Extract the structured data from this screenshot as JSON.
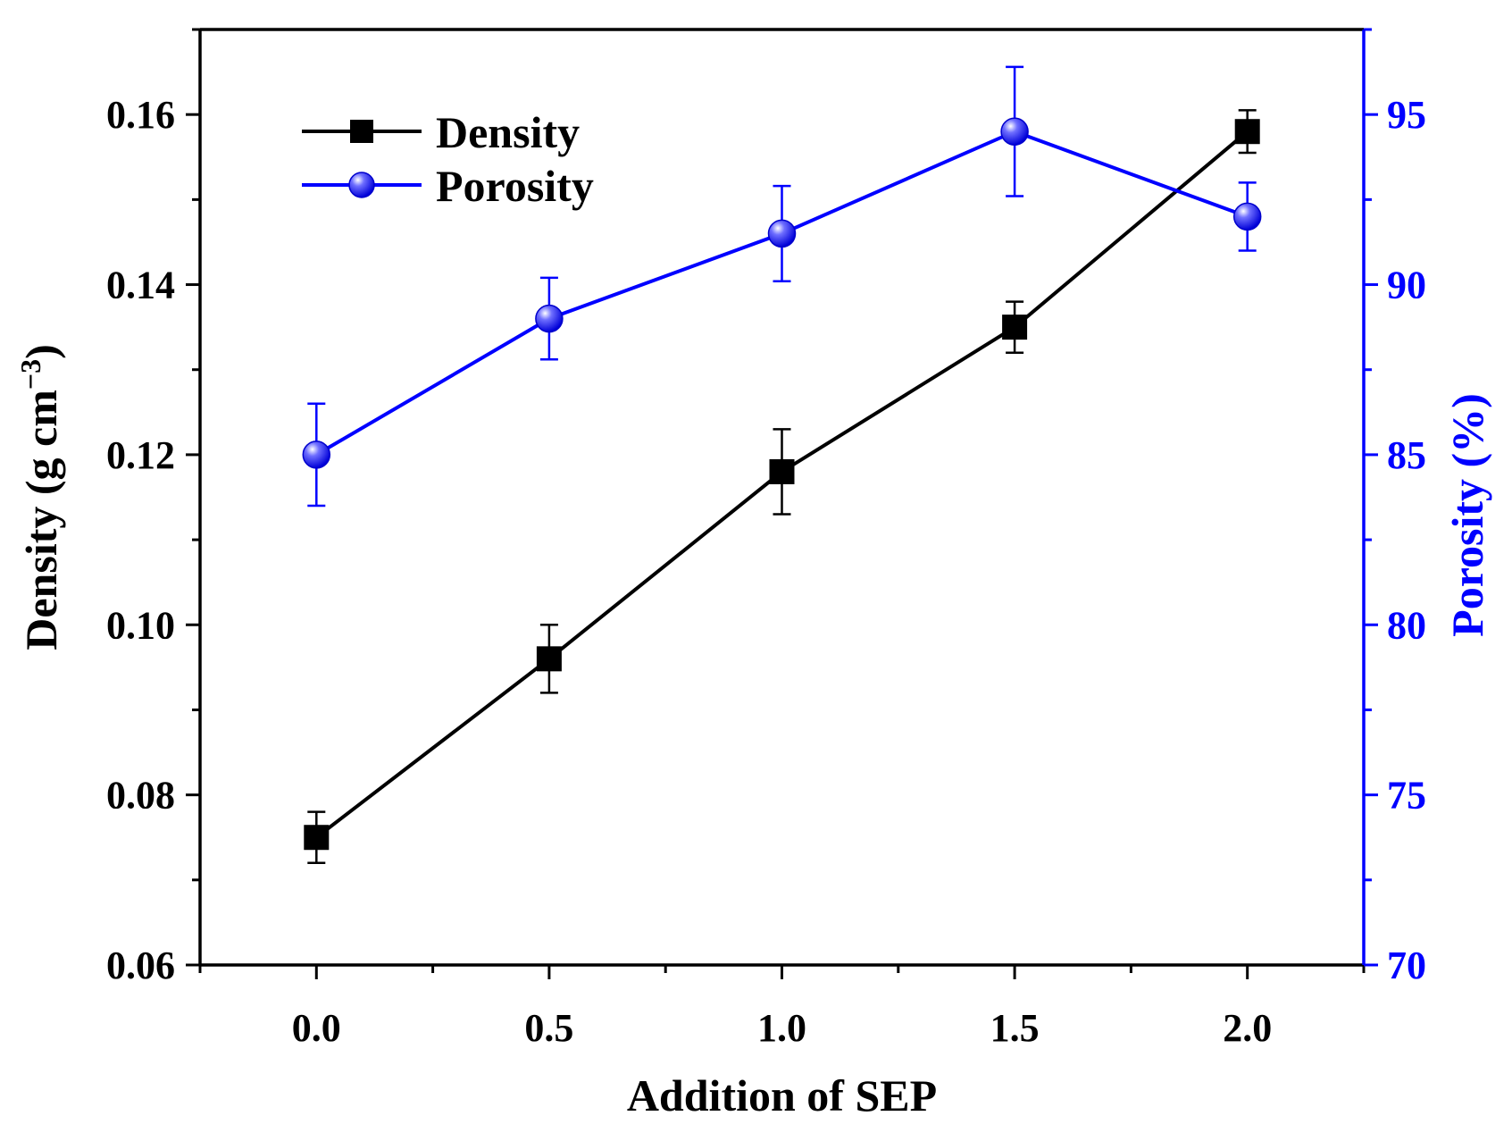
{
  "chart_data": {
    "type": "line",
    "title": "",
    "xlabel": "Addition of SEP",
    "ylabel": {
      "main": "Density (g cm",
      "superscript": "−3",
      "close": ")"
    },
    "y2label": "Porosity (%)",
    "x": [
      0.0,
      0.5,
      1.0,
      1.5,
      2.0
    ],
    "xlim": [
      -0.25,
      2.25
    ],
    "ylim": [
      0.06,
      0.17
    ],
    "y2lim": [
      70,
      97.5
    ],
    "xticks": [
      "0.0",
      "0.5",
      "1.0",
      "1.5",
      "2.0"
    ],
    "yticks": [
      "0.06",
      "0.08",
      "0.10",
      "0.12",
      "0.14",
      "0.16"
    ],
    "y2ticks": [
      "70",
      "75",
      "80",
      "85",
      "90",
      "95"
    ],
    "legend_position": "top-left",
    "series": [
      {
        "name": "Density",
        "axis": "left",
        "marker": "square",
        "color": "#000000",
        "values": [
          0.075,
          0.096,
          0.118,
          0.135,
          0.158
        ],
        "errors": [
          0.003,
          0.004,
          0.005,
          0.003,
          0.0025
        ]
      },
      {
        "name": "Porosity",
        "axis": "right",
        "marker": "circle",
        "color": "#0000ff",
        "values": [
          85.0,
          89.0,
          91.5,
          94.5,
          92.0
        ],
        "errors": [
          1.5,
          1.2,
          1.4,
          1.9,
          1.0
        ]
      }
    ]
  }
}
